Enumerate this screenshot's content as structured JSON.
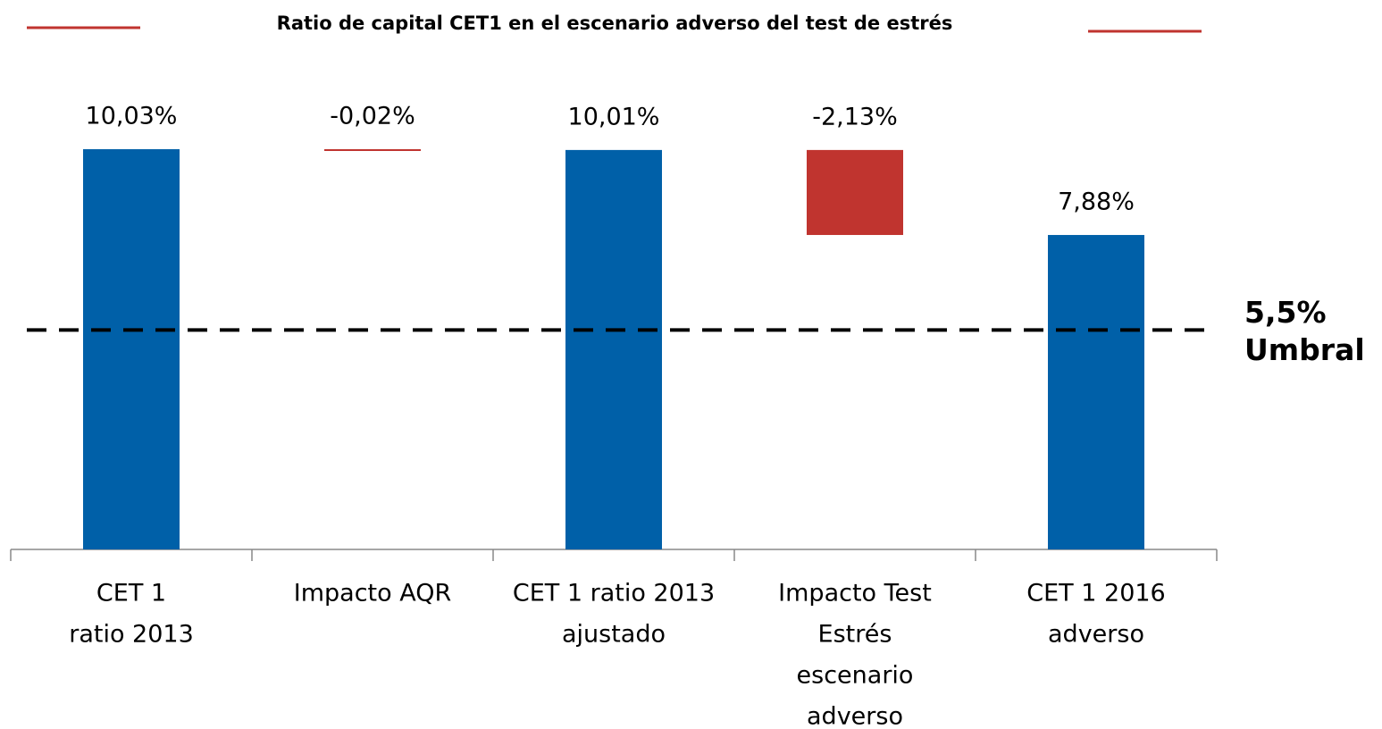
{
  "chart_data": {
    "type": "waterfall",
    "title": "Ratio de capital CET1 en el escenario adverso del test de estrés",
    "categories": [
      [
        "CET 1",
        "ratio 2013"
      ],
      [
        "Impacto AQR"
      ],
      [
        "CET 1 ratio 2013",
        "ajustado"
      ],
      [
        "Impacto Test",
        "Estrés",
        "escenario",
        "adverso"
      ],
      [
        "CET 1 2016",
        "adverso"
      ]
    ],
    "measure": [
      "total",
      "relative",
      "total",
      "relative",
      "total"
    ],
    "values": [
      10.03,
      -0.02,
      10.01,
      -2.13,
      7.88
    ],
    "value_labels": [
      "10,03%",
      "-0,02%",
      "10,01%",
      "-2,13%",
      "7,88%"
    ],
    "total_color": "#0060a8",
    "decrease_color": "#c0342f",
    "ylim": [
      0,
      10.5
    ],
    "threshold": {
      "value": 5.5,
      "label": [
        "5,5%",
        "Umbral"
      ]
    }
  }
}
